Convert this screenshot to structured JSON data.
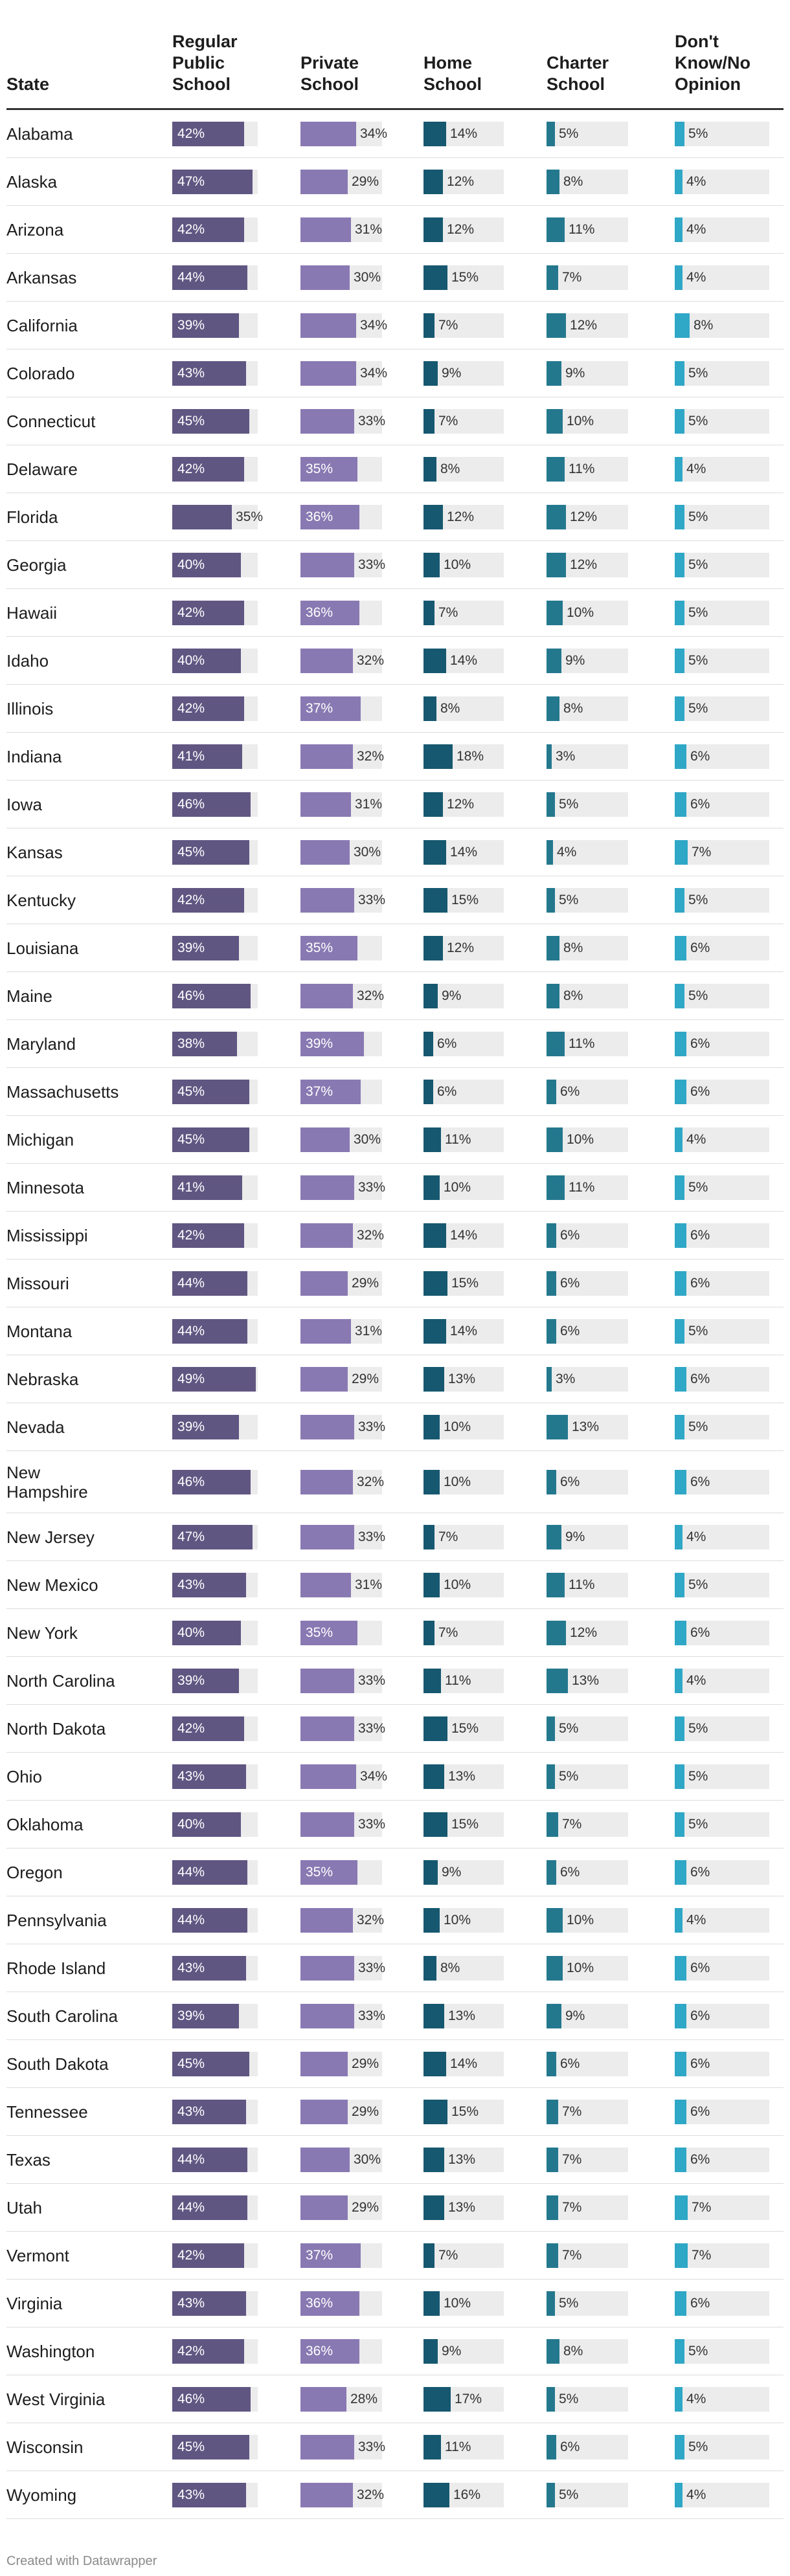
{
  "chart_data": {
    "type": "table",
    "columns": [
      {
        "key": "state",
        "label": "State"
      },
      {
        "key": "public",
        "label": "Regular Public School",
        "color": "#605682"
      },
      {
        "key": "private",
        "label": "Private School",
        "color": "#8979b2"
      },
      {
        "key": "home",
        "label": "Home School",
        "color": "#16586f"
      },
      {
        "key": "charter",
        "label": "Charter School",
        "color": "#24788e"
      },
      {
        "key": "dontknow",
        "label": "Don't Know/No Opinion",
        "color": "#2fa7c6"
      }
    ],
    "rows": [
      {
        "state": "Alabama",
        "values": [
          "42%",
          "34%",
          "14%",
          "5%",
          "5%"
        ]
      },
      {
        "state": "Alaska",
        "values": [
          "47%",
          "29%",
          "12%",
          "8%",
          "4%"
        ]
      },
      {
        "state": "Arizona",
        "values": [
          "42%",
          "31%",
          "12%",
          "11%",
          "4%"
        ]
      },
      {
        "state": "Arkansas",
        "values": [
          "44%",
          "30%",
          "15%",
          "7%",
          "4%"
        ]
      },
      {
        "state": "California",
        "values": [
          "39%",
          "34%",
          "7%",
          "12%",
          "8%"
        ]
      },
      {
        "state": "Colorado",
        "values": [
          "43%",
          "34%",
          "9%",
          "9%",
          "5%"
        ]
      },
      {
        "state": "Connecticut",
        "values": [
          "45%",
          "33%",
          "7%",
          "10%",
          "5%"
        ]
      },
      {
        "state": "Delaware",
        "values": [
          "42%",
          "35%",
          "8%",
          "11%",
          "4%"
        ]
      },
      {
        "state": "Florida",
        "values": [
          "35%",
          "36%",
          "12%",
          "12%",
          "5%"
        ]
      },
      {
        "state": "Georgia",
        "values": [
          "40%",
          "33%",
          "10%",
          "12%",
          "5%"
        ]
      },
      {
        "state": "Hawaii",
        "values": [
          "42%",
          "36%",
          "7%",
          "10%",
          "5%"
        ]
      },
      {
        "state": "Idaho",
        "values": [
          "40%",
          "32%",
          "14%",
          "9%",
          "5%"
        ]
      },
      {
        "state": "Illinois",
        "values": [
          "42%",
          "37%",
          "8%",
          "8%",
          "5%"
        ]
      },
      {
        "state": "Indiana",
        "values": [
          "41%",
          "32%",
          "18%",
          "3%",
          "6%"
        ]
      },
      {
        "state": "Iowa",
        "values": [
          "46%",
          "31%",
          "12%",
          "5%",
          "6%"
        ]
      },
      {
        "state": "Kansas",
        "values": [
          "45%",
          "30%",
          "14%",
          "4%",
          "7%"
        ]
      },
      {
        "state": "Kentucky",
        "values": [
          "42%",
          "33%",
          "15%",
          "5%",
          "5%"
        ]
      },
      {
        "state": "Louisiana",
        "values": [
          "39%",
          "35%",
          "12%",
          "8%",
          "6%"
        ]
      },
      {
        "state": "Maine",
        "values": [
          "46%",
          "32%",
          "9%",
          "8%",
          "5%"
        ]
      },
      {
        "state": "Maryland",
        "values": [
          "38%",
          "39%",
          "6%",
          "11%",
          "6%"
        ]
      },
      {
        "state": "Massachusetts",
        "values": [
          "45%",
          "37%",
          "6%",
          "6%",
          "6%"
        ]
      },
      {
        "state": "Michigan",
        "values": [
          "45%",
          "30%",
          "11%",
          "10%",
          "4%"
        ]
      },
      {
        "state": "Minnesota",
        "values": [
          "41%",
          "33%",
          "10%",
          "11%",
          "5%"
        ]
      },
      {
        "state": "Mississippi",
        "values": [
          "42%",
          "32%",
          "14%",
          "6%",
          "6%"
        ]
      },
      {
        "state": "Missouri",
        "values": [
          "44%",
          "29%",
          "15%",
          "6%",
          "6%"
        ]
      },
      {
        "state": "Montana",
        "values": [
          "44%",
          "31%",
          "14%",
          "6%",
          "5%"
        ]
      },
      {
        "state": "Nebraska",
        "values": [
          "49%",
          "29%",
          "13%",
          "3%",
          "6%"
        ]
      },
      {
        "state": "Nevada",
        "values": [
          "39%",
          "33%",
          "10%",
          "13%",
          "5%"
        ]
      },
      {
        "state": "New Hampshire",
        "values": [
          "46%",
          "32%",
          "10%",
          "6%",
          "6%"
        ]
      },
      {
        "state": "New Jersey",
        "values": [
          "47%",
          "33%",
          "7%",
          "9%",
          "4%"
        ]
      },
      {
        "state": "New Mexico",
        "values": [
          "43%",
          "31%",
          "10%",
          "11%",
          "5%"
        ]
      },
      {
        "state": "New York",
        "values": [
          "40%",
          "35%",
          "7%",
          "12%",
          "6%"
        ]
      },
      {
        "state": "North Carolina",
        "values": [
          "39%",
          "33%",
          "11%",
          "13%",
          "4%"
        ]
      },
      {
        "state": "North Dakota",
        "values": [
          "42%",
          "33%",
          "15%",
          "5%",
          "5%"
        ]
      },
      {
        "state": "Ohio",
        "values": [
          "43%",
          "34%",
          "13%",
          "5%",
          "5%"
        ]
      },
      {
        "state": "Oklahoma",
        "values": [
          "40%",
          "33%",
          "15%",
          "7%",
          "5%"
        ]
      },
      {
        "state": "Oregon",
        "values": [
          "44%",
          "35%",
          "9%",
          "6%",
          "6%"
        ]
      },
      {
        "state": "Pennsylvania",
        "values": [
          "44%",
          "32%",
          "10%",
          "10%",
          "4%"
        ]
      },
      {
        "state": "Rhode Island",
        "values": [
          "43%",
          "33%",
          "8%",
          "10%",
          "6%"
        ]
      },
      {
        "state": "South Carolina",
        "values": [
          "39%",
          "33%",
          "13%",
          "9%",
          "6%"
        ]
      },
      {
        "state": "South Dakota",
        "values": [
          "45%",
          "29%",
          "14%",
          "6%",
          "6%"
        ]
      },
      {
        "state": "Tennessee",
        "values": [
          "43%",
          "29%",
          "15%",
          "7%",
          "6%"
        ]
      },
      {
        "state": "Texas",
        "values": [
          "44%",
          "30%",
          "13%",
          "7%",
          "6%"
        ]
      },
      {
        "state": "Utah",
        "values": [
          "44%",
          "29%",
          "13%",
          "7%",
          "7%"
        ]
      },
      {
        "state": "Vermont",
        "values": [
          "42%",
          "37%",
          "7%",
          "7%",
          "7%"
        ]
      },
      {
        "state": "Virginia",
        "values": [
          "43%",
          "36%",
          "10%",
          "5%",
          "6%"
        ]
      },
      {
        "state": "Washington",
        "values": [
          "42%",
          "36%",
          "9%",
          "8%",
          "5%"
        ]
      },
      {
        "state": "West Virginia",
        "values": [
          "46%",
          "28%",
          "17%",
          "5%",
          "4%"
        ]
      },
      {
        "state": "Wisconsin",
        "values": [
          "45%",
          "33%",
          "11%",
          "6%",
          "5%"
        ]
      },
      {
        "state": "Wyoming",
        "values": [
          "43%",
          "32%",
          "16%",
          "5%",
          "4%"
        ]
      }
    ],
    "scale_max": "50%",
    "grid": false
  },
  "footer": {
    "credit": "Created with Datawrapper"
  }
}
